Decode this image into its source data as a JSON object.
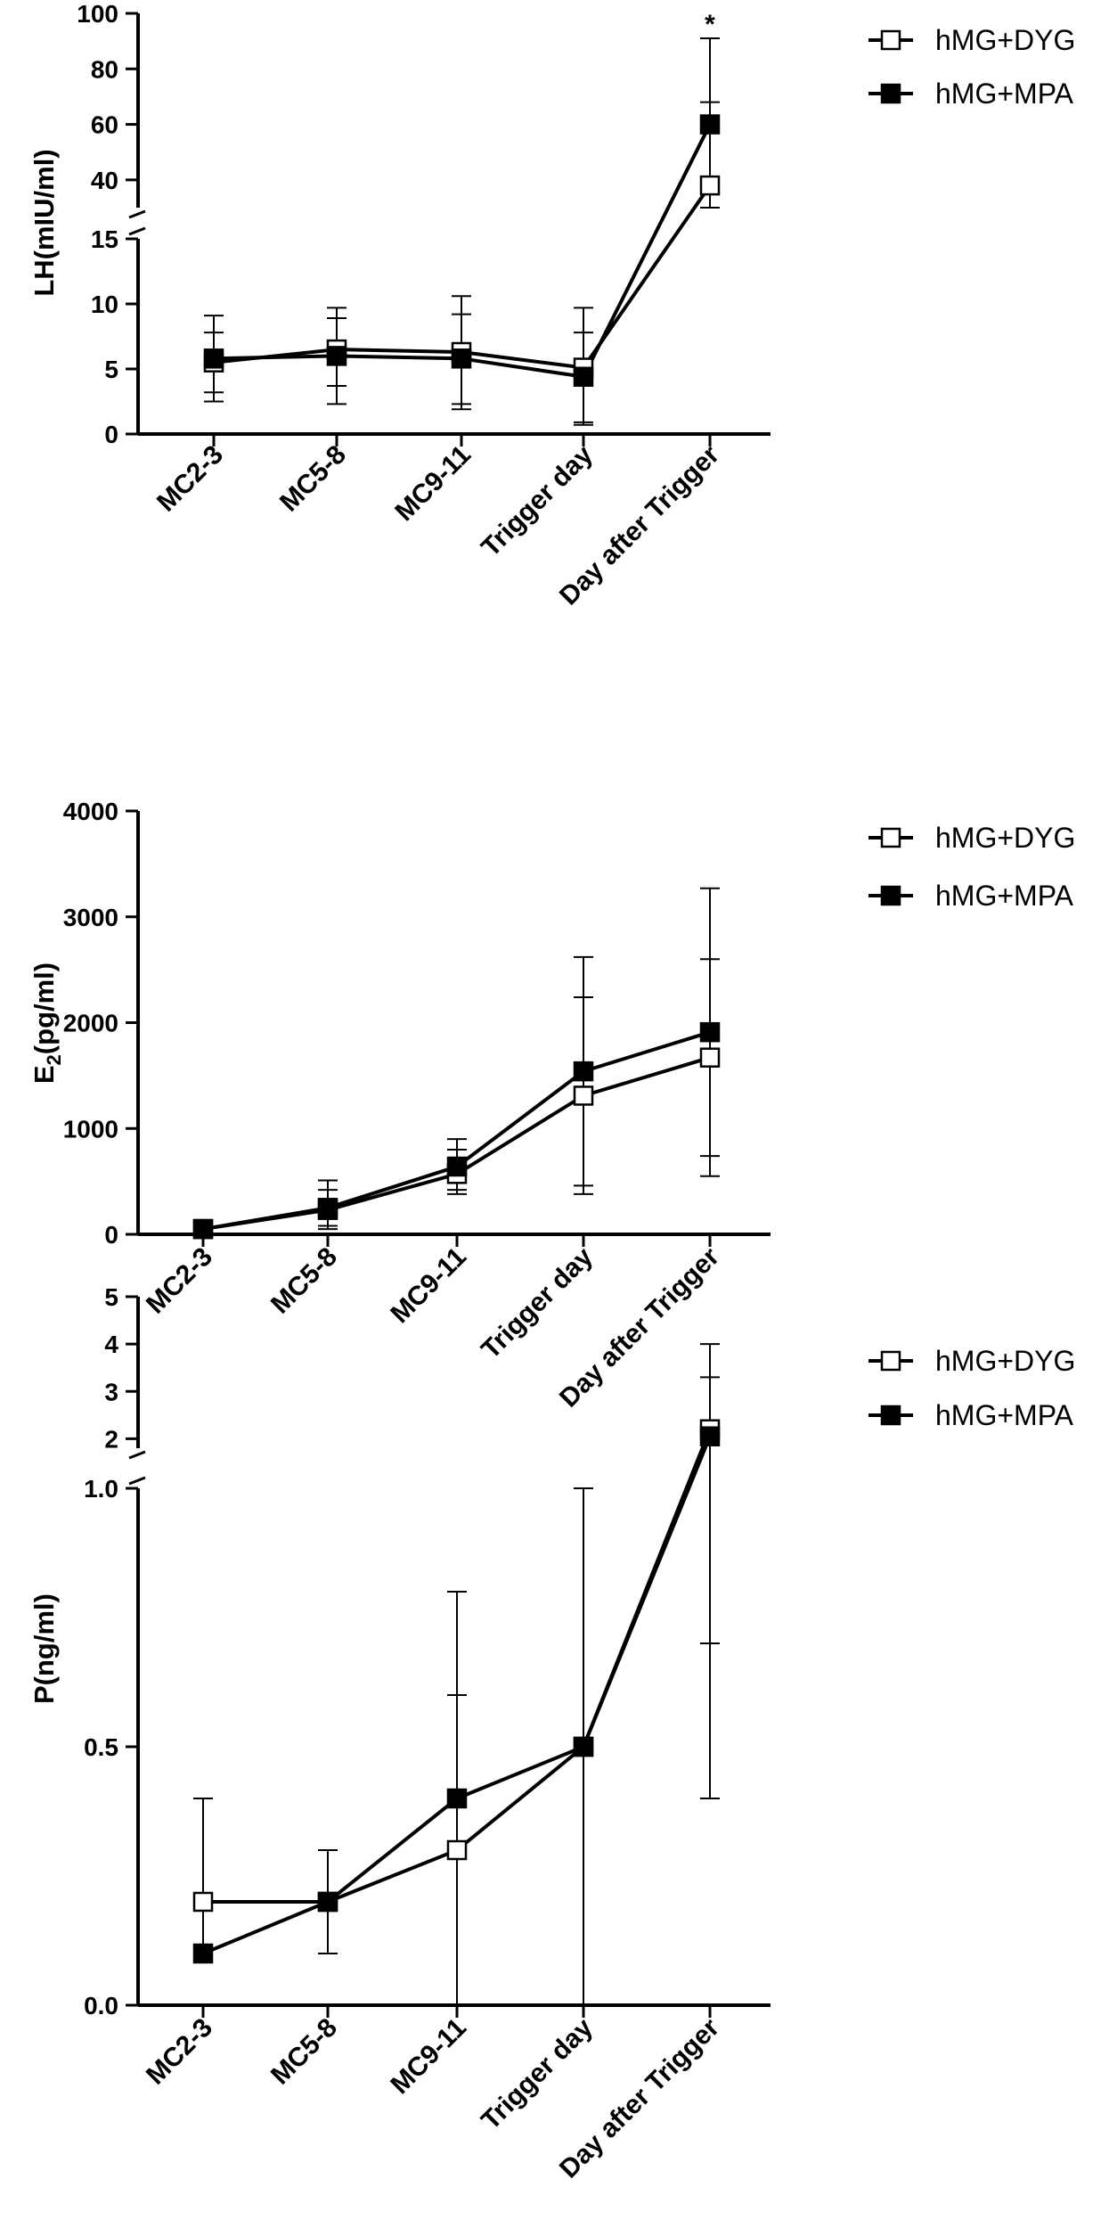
{
  "chart_data": [
    {
      "type": "line",
      "ylabel": "LH(mIU/ml)",
      "categories": [
        "MC2-3",
        "MC5-8",
        "MC9-11",
        "Trigger day",
        "Day after Trigger"
      ],
      "y_axis_segments": [
        {
          "range": [
            0,
            15
          ],
          "ticks": [
            "0",
            "5",
            "10",
            "15"
          ]
        },
        {
          "range": [
            30,
            100
          ],
          "ticks": [
            "40",
            "60",
            "80",
            "100"
          ]
        }
      ],
      "legend_position": "top-right",
      "series": [
        {
          "name": "hMG+DYG",
          "marker": "open-square",
          "values": [
            5.5,
            6.5,
            6.3,
            5.1,
            38
          ],
          "error_upper": [
            7.8,
            9.7,
            10.6,
            9.7,
            68
          ],
          "error_lower": [
            3.2,
            3.7,
            2.3,
            0.9,
            30
          ]
        },
        {
          "name": "hMG+MPA",
          "marker": "filled-square",
          "values": [
            5.8,
            6.0,
            5.8,
            4.4,
            60
          ],
          "error_upper": [
            9.1,
            8.9,
            9.2,
            7.8,
            91
          ],
          "error_lower": [
            2.5,
            2.3,
            1.9,
            0.7,
            36
          ]
        }
      ],
      "annotations": [
        {
          "category": "Day after Trigger",
          "text": "*"
        }
      ]
    },
    {
      "type": "line",
      "ylabel": "E2(pg/ml)",
      "ylabel_parts": {
        "base": "E",
        "sub": "2",
        "rest": "(pg/ml)"
      },
      "categories": [
        "MC2-3",
        "MC5-8",
        "MC9-11",
        "Trigger day",
        "Day after Trigger"
      ],
      "y_axis_segments": [
        {
          "range": [
            0,
            4000
          ],
          "ticks": [
            "0",
            "1000",
            "2000",
            "3000",
            "4000"
          ]
        }
      ],
      "legend_position": "top-right",
      "series": [
        {
          "name": "hMG+DYG",
          "marker": "open-square",
          "values": [
            50,
            230,
            570,
            1310,
            1670
          ],
          "error_upper": [
            60,
            420,
            800,
            2240,
            2600
          ],
          "error_lower": [
            40,
            50,
            380,
            380,
            740
          ]
        },
        {
          "name": "hMG+MPA",
          "marker": "filled-square",
          "values": [
            50,
            250,
            640,
            1540,
            1910
          ],
          "error_upper": [
            60,
            510,
            900,
            2620,
            3270
          ],
          "error_lower": [
            40,
            80,
            420,
            460,
            550
          ]
        }
      ]
    },
    {
      "type": "line",
      "ylabel": "P(ng/ml)",
      "categories": [
        "MC2-3",
        "MC5-8",
        "MC9-11",
        "Trigger day",
        "Day after Trigger"
      ],
      "y_axis_segments": [
        {
          "range": [
            0,
            1.0
          ],
          "ticks": [
            "0.0",
            "0.5",
            "1.0"
          ]
        },
        {
          "range": [
            1.8,
            5
          ],
          "ticks": [
            "2",
            "3",
            "4",
            "5"
          ]
        }
      ],
      "legend_position": "top-right",
      "series": [
        {
          "name": "hMG+DYG",
          "marker": "open-square",
          "values": [
            0.2,
            0.2,
            0.3,
            0.5,
            2.2
          ],
          "error_upper": [
            0.4,
            0.3,
            0.6,
            1.0,
            4.0
          ],
          "error_lower": [
            0.1,
            0.1,
            0.0,
            0.0,
            0.7
          ]
        },
        {
          "name": "hMG+MPA",
          "marker": "filled-square",
          "values": [
            0.1,
            0.2,
            0.4,
            0.5,
            2.05
          ],
          "error_upper": [
            0.1,
            0.3,
            0.8,
            1.0,
            3.3
          ],
          "error_lower": [
            0.1,
            0.1,
            0.0,
            0.0,
            0.4
          ]
        }
      ]
    }
  ]
}
